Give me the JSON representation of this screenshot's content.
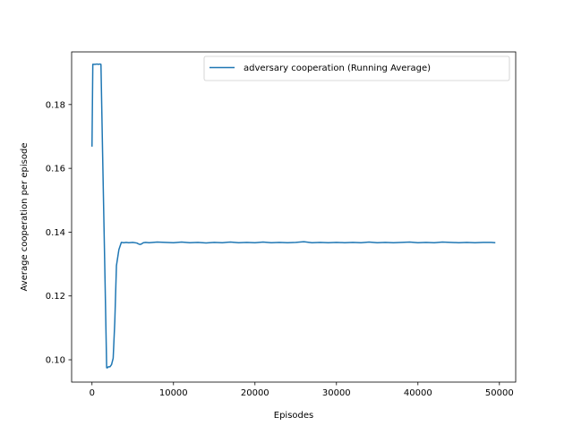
{
  "chart_data": {
    "type": "line",
    "title": "",
    "xlabel": "Episodes",
    "ylabel": "Average cooperation per episode",
    "xlim": [
      -2500,
      52000
    ],
    "ylim": [
      0.093,
      0.1965
    ],
    "xticks": [
      0,
      10000,
      20000,
      30000,
      40000,
      50000
    ],
    "xtick_labels": [
      "0",
      "10000",
      "20000",
      "30000",
      "40000",
      "50000"
    ],
    "yticks": [
      0.1,
      0.12,
      0.14,
      0.16,
      0.18
    ],
    "ytick_labels": [
      "0.10",
      "0.12",
      "0.14",
      "0.16",
      "0.18"
    ],
    "grid": false,
    "legend_position": "upper right",
    "series": [
      {
        "name": "adversary cooperation (Running Average)",
        "color": "#1f77b4",
        "x": [
          0,
          100,
          200,
          400,
          600,
          800,
          1000,
          1100,
          1300,
          1600,
          1800,
          1900,
          2000,
          2200,
          2400,
          2600,
          2800,
          3000,
          3300,
          3600,
          3900,
          4200,
          4500,
          5000,
          5500,
          5800,
          6000,
          6300,
          6600,
          7000,
          8000,
          9000,
          10000,
          11000,
          12000,
          13000,
          14000,
          15000,
          16000,
          17000,
          18000,
          19000,
          20000,
          21000,
          22000,
          23000,
          24000,
          25000,
          26000,
          27000,
          28000,
          29000,
          30000,
          31000,
          32000,
          33000,
          34000,
          35000,
          36000,
          37000,
          38000,
          39000,
          40000,
          41000,
          42000,
          43000,
          44000,
          45000,
          46000,
          47000,
          48000,
          49000,
          49500
        ],
        "y": [
          0.1668,
          0.1926,
          0.1926,
          0.1926,
          0.1927,
          0.1926,
          0.1927,
          0.1926,
          0.165,
          0.125,
          0.0975,
          0.0975,
          0.0978,
          0.0978,
          0.0985,
          0.1005,
          0.112,
          0.1295,
          0.1345,
          0.1368,
          0.1367,
          0.1368,
          0.1367,
          0.1368,
          0.1366,
          0.1362,
          0.1362,
          0.1367,
          0.1368,
          0.1367,
          0.1369,
          0.1368,
          0.1367,
          0.1369,
          0.1367,
          0.1368,
          0.1366,
          0.1368,
          0.1367,
          0.1369,
          0.1367,
          0.1368,
          0.1367,
          0.1369,
          0.1367,
          0.1368,
          0.1367,
          0.1368,
          0.137,
          0.1367,
          0.1368,
          0.1367,
          0.1368,
          0.1367,
          0.1368,
          0.1367,
          0.1369,
          0.1367,
          0.1368,
          0.1367,
          0.1368,
          0.1369,
          0.1367,
          0.1368,
          0.1367,
          0.1369,
          0.1368,
          0.1367,
          0.1368,
          0.1367,
          0.1368,
          0.1368,
          0.1367
        ]
      }
    ]
  }
}
